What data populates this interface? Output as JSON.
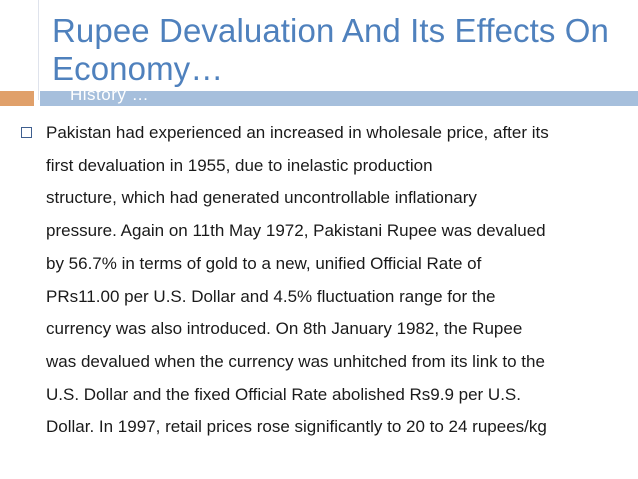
{
  "slide": {
    "title": "Rupee Devaluation And Its Effects On Economy…",
    "subtitle": "History …",
    "bullet": {
      "lines": [
        "Pakistan had experienced an increased in wholesale price, after its",
        "first devaluation in 1955, due to inelastic production",
        "structure, which had generated uncontrollable inflationary",
        "pressure. Again on 11th May 1972, Pakistani Rupee was devalued",
        "by 56.7% in terms of gold to a new, unified Official Rate of",
        "PRs11.00 per U.S. Dollar and 4.5% fluctuation range for the",
        "currency was also introduced. On 8th January 1982, the Rupee",
        "was devalued when the currency was unhitched from its link to the",
        "U.S. Dollar and the fixed Official Rate abolished Rs9.9 per U.S.",
        "Dollar. In 1997, retail prices rose significantly to 20 to 24 rupees/kg"
      ]
    }
  },
  "colors": {
    "title": "#4f81bd",
    "bar_blue": "#a6bfdc",
    "bar_orange": "#e0a06a",
    "text": "#1a1a1a"
  }
}
